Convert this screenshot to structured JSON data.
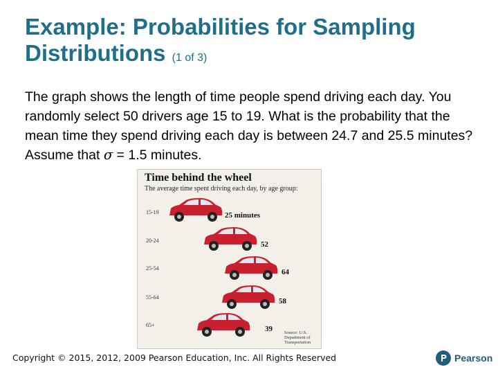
{
  "slide": {
    "title_main": "Example: Probabilities for Sampling Distributions",
    "title_sub": "(1 of 3)",
    "body_before_sigma": "The graph shows the length of time people spend driving each day. You randomly select 50 drivers age 15 to 19. What is the probability that the mean time they spend driving each day is between 24.7 and 25.5 minutes? Assume that",
    "sigma": "σ",
    "body_after_sigma": "= 1.5 minutes.",
    "copyright": "Copyright © 2015, 2012, 2009 Pearson Education, Inc. All Rights Reserved",
    "brand": "Pearson"
  },
  "figure": {
    "title": "Time behind the wheel",
    "subtitle": "The average time spent driving each day, by age group:",
    "rows": [
      {
        "age": "15-19",
        "value": "25 minutes"
      },
      {
        "age": "20-24",
        "value": "52"
      },
      {
        "age": "25-54",
        "value": "64"
      },
      {
        "age": "55-64",
        "value": "58"
      },
      {
        "age": "65+",
        "value": "39"
      }
    ],
    "source": "Source: U.S. Department of Transportation"
  },
  "colors": {
    "title": "#1f6f8b",
    "car": "#c8202e",
    "figure_bg": "#f3f0ea"
  }
}
